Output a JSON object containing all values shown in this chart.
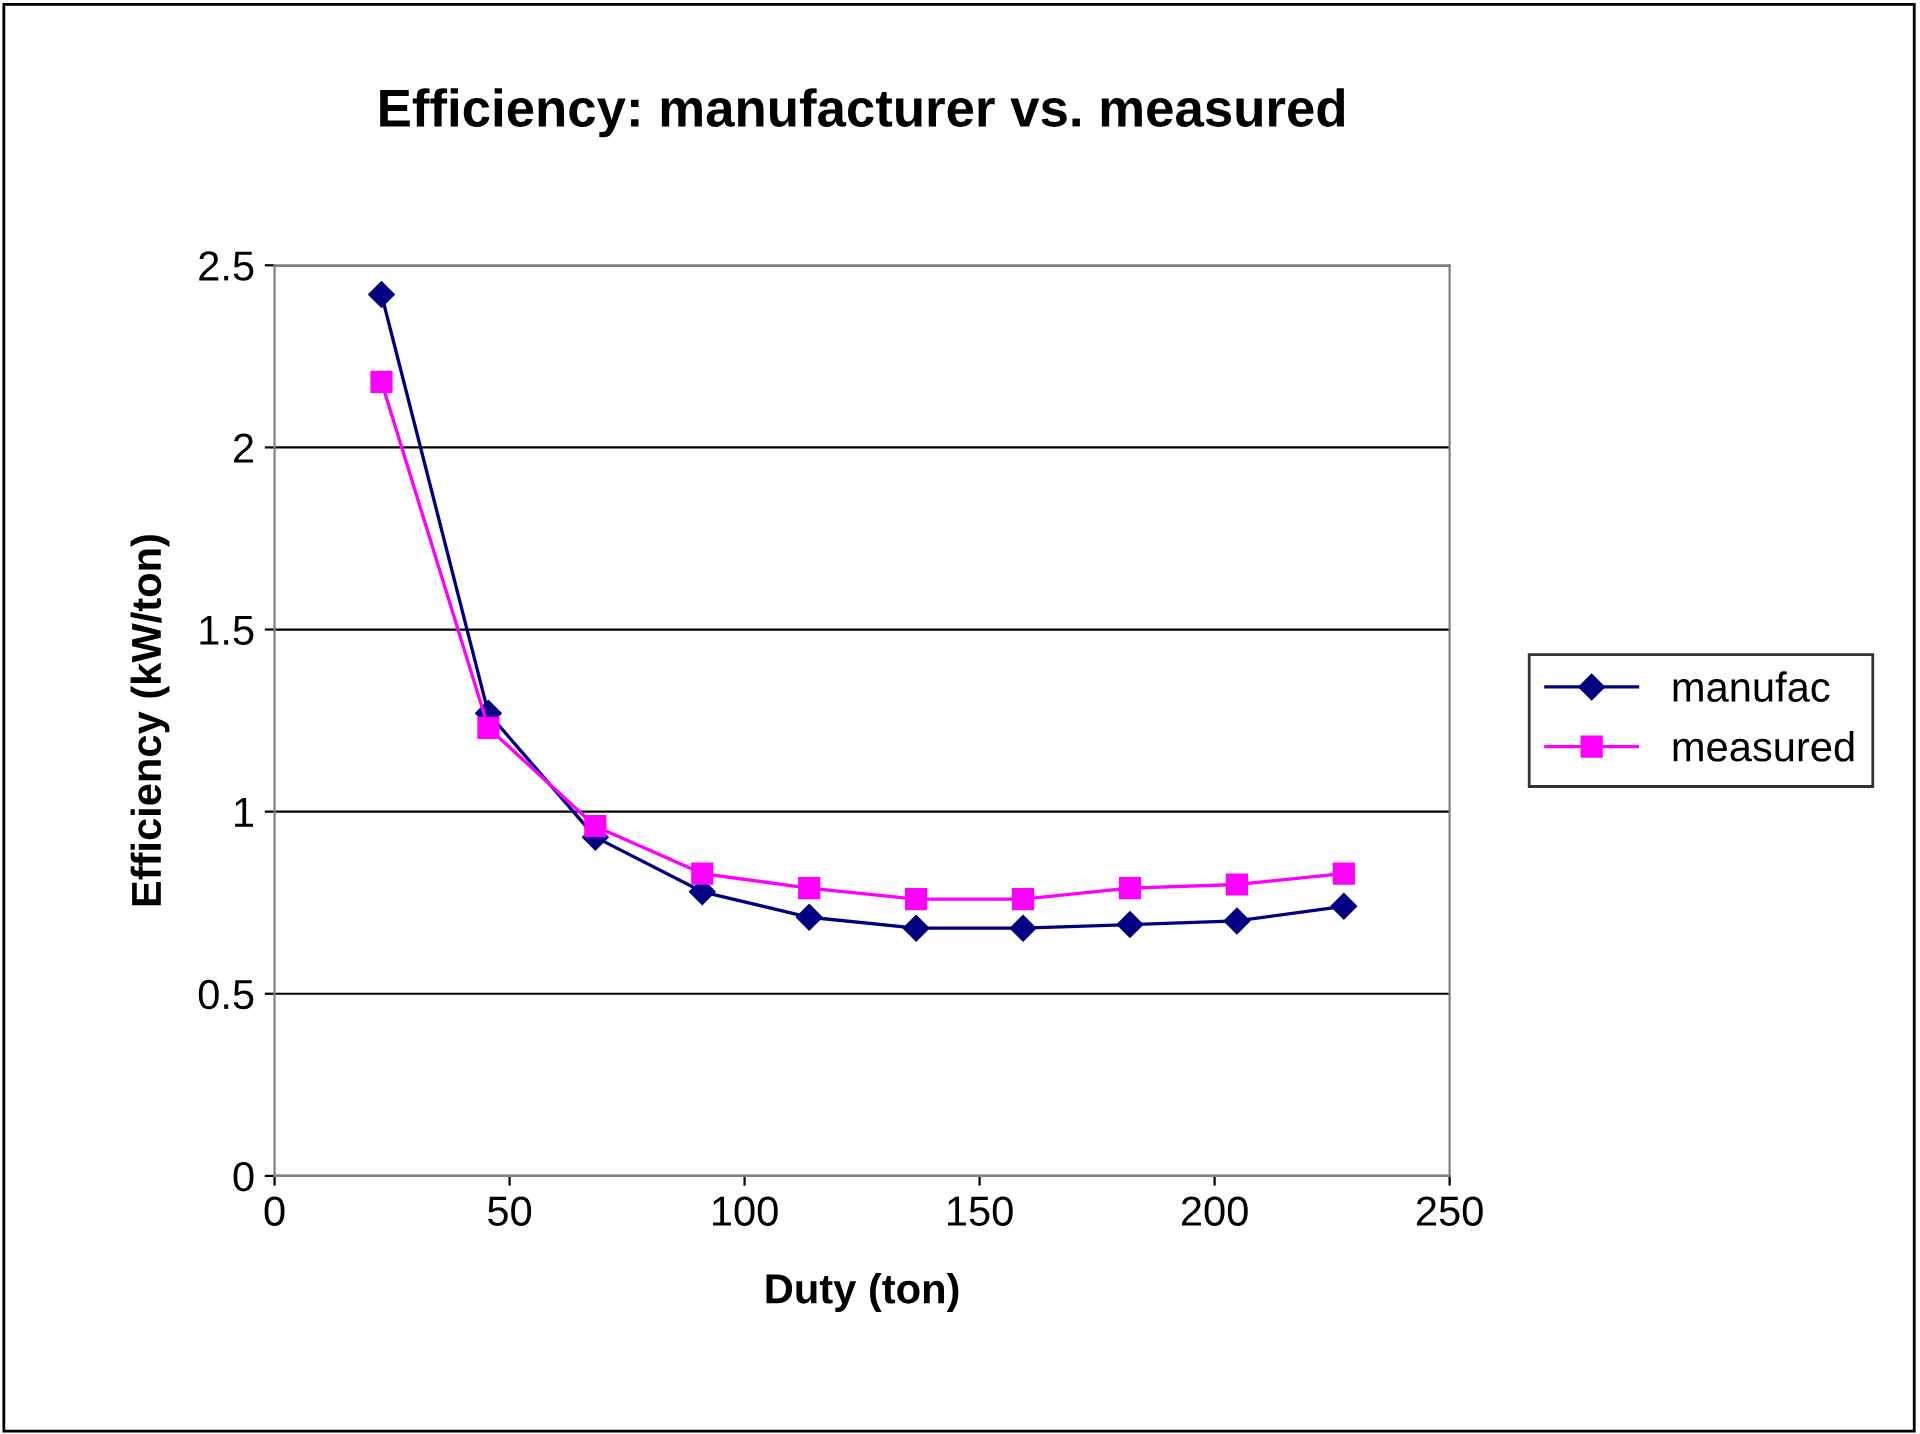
{
  "chart_data": {
    "type": "line",
    "title": "Efficiency: manufacturer vs. measured",
    "xlabel": "Duty (ton)",
    "ylabel": "Efficiency (kW/ton)",
    "x": [
      22.75,
      45.5,
      68.25,
      91,
      113.75,
      136.5,
      159.25,
      182,
      204.75,
      227.5
    ],
    "series": [
      {
        "name": "manufac",
        "color": "#000080",
        "marker": "diamond",
        "values": [
          2.42,
          1.27,
          0.93,
          0.78,
          0.71,
          0.68,
          0.68,
          0.69,
          0.7,
          0.74
        ]
      },
      {
        "name": "measured",
        "color": "#ff00ff",
        "marker": "square",
        "values": [
          2.18,
          1.23,
          0.96,
          0.83,
          0.79,
          0.76,
          0.76,
          0.79,
          0.8,
          0.83
        ]
      }
    ],
    "xlim": [
      0,
      250
    ],
    "xticks": [
      0,
      50,
      100,
      150,
      200,
      250
    ],
    "ylim": [
      0,
      2.5
    ],
    "yticks": [
      0,
      0.5,
      1,
      1.5,
      2,
      2.5
    ],
    "grid": "y",
    "legend": "right",
    "line_style": "solid"
  }
}
